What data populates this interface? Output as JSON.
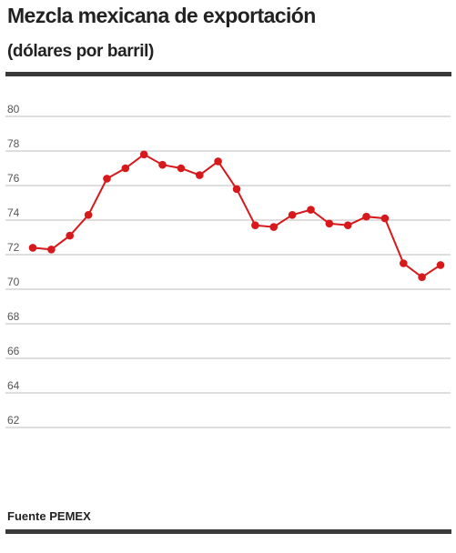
{
  "title": "Mezcla mexicana de exportación",
  "subtitle": "(dólares por barril)",
  "source": "Fuente PEMEX",
  "colors": {
    "line": "#d7191c",
    "grid": "#bdbdbd",
    "rule": "#3a3a3a"
  },
  "chart_data": {
    "type": "line",
    "title": "Mezcla mexicana de exportación",
    "subtitle": "(dólares por barril)",
    "xlabel": "",
    "ylabel": "",
    "ylim": [
      60,
      80
    ],
    "yticks": [
      62,
      64,
      66,
      68,
      70,
      72,
      74,
      76,
      78,
      80
    ],
    "grid": true,
    "legend": "none",
    "series": [
      {
        "values": [
          72.4,
          72.3,
          73.1,
          74.3,
          76.4,
          77.0,
          77.8,
          77.2,
          77.0,
          76.6,
          77.4,
          75.8,
          73.7,
          73.6,
          74.3,
          74.6,
          73.8,
          73.7,
          74.2,
          74.1,
          71.5,
          70.7,
          71.4
        ]
      }
    ]
  }
}
